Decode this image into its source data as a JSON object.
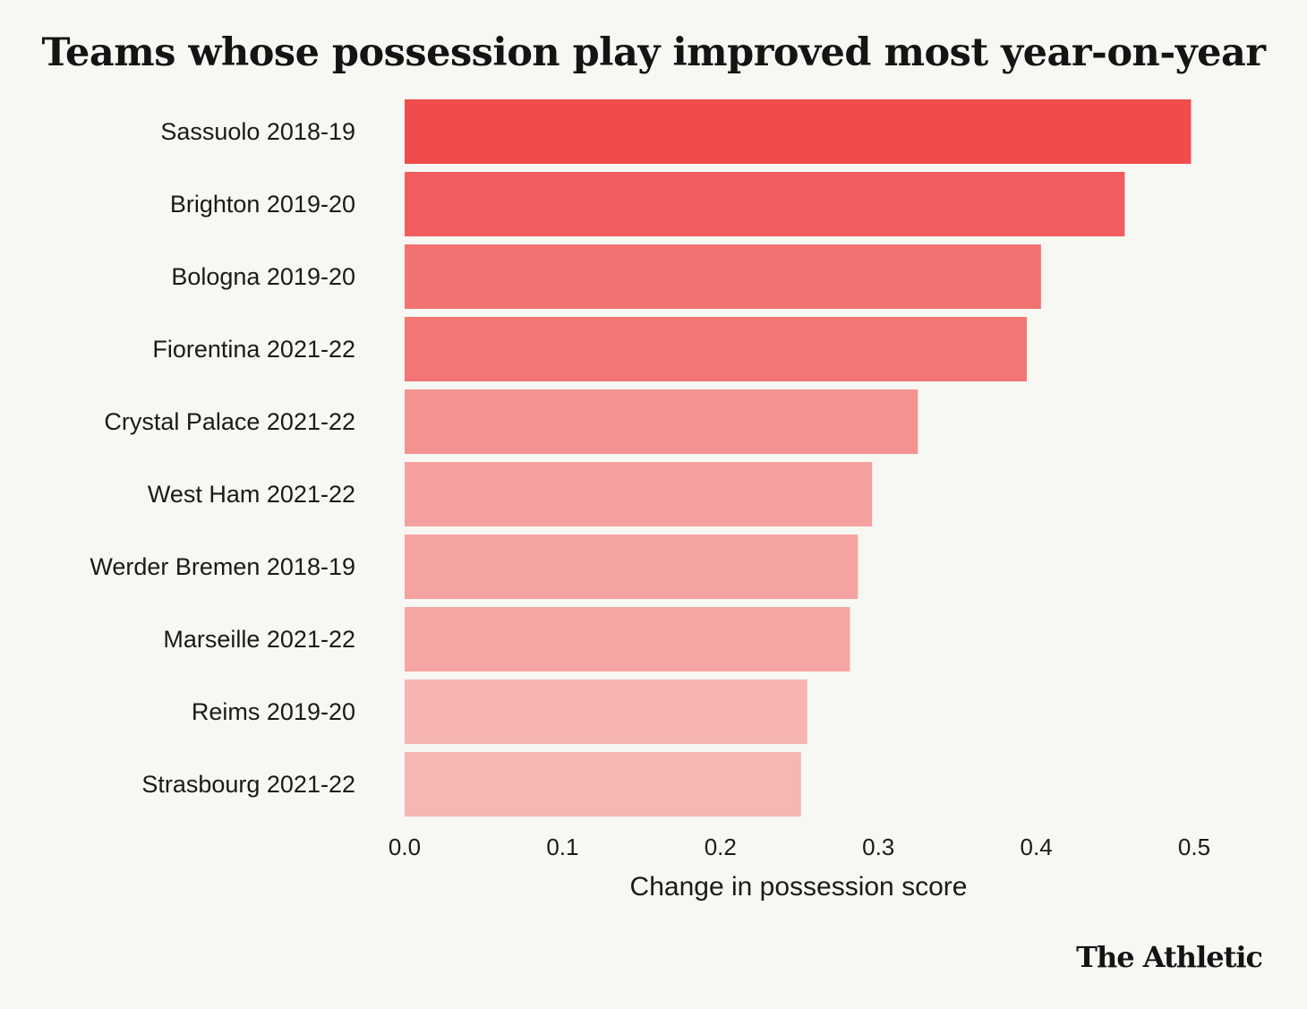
{
  "chart_data": {
    "type": "bar",
    "orientation": "horizontal",
    "title": "Teams whose possession play improved most year-on-year",
    "xlabel": "Change in possession score",
    "ylabel": "",
    "xlim": [
      0,
      0.5
    ],
    "xticks": [
      "0.0",
      "0.1",
      "0.2",
      "0.3",
      "0.4",
      "0.5"
    ],
    "grid": false,
    "categories": [
      "Sassuolo 2018-19",
      "Brighton 2019-20",
      "Bologna 2019-20",
      "Fiorentina 2021-22",
      "Crystal Palace 2021-22",
      "West Ham 2021-22",
      "Werder Bremen 2018-19",
      "Marseille 2021-22",
      "Reims 2019-20",
      "Strasbourg 2021-22"
    ],
    "values": [
      0.498,
      0.456,
      0.403,
      0.394,
      0.325,
      0.296,
      0.287,
      0.282,
      0.255,
      0.251
    ],
    "colors": [
      "#f04c4e",
      "#f15d5f",
      "#f27272",
      "#f27673",
      "#f59391",
      "#f5a19f",
      "#f5a3a1",
      "#f5a6a4",
      "#f6b5b3",
      "#f6b6b4"
    ]
  },
  "brand": "The Athletic"
}
